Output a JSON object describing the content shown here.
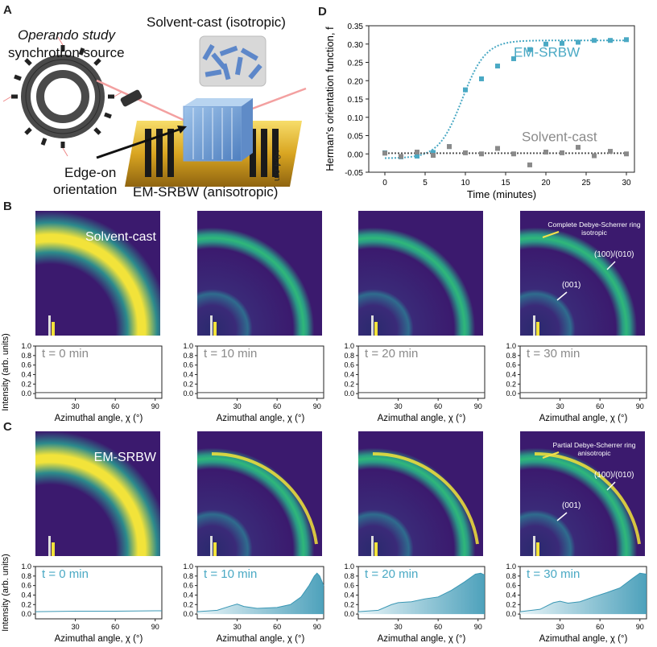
{
  "panels": {
    "a": "A",
    "b": "B",
    "c": "C",
    "d": "D"
  },
  "schematic": {
    "operando_line1": "Operando study",
    "operando_line2": "synchrotron source",
    "solvent_cast_label": "Solvent-cast (isotropic)",
    "edge_on_line1": "Edge-on",
    "edge_on_line2": "orientation",
    "em_srbw_label": "EM-SRBW (anisotropic)",
    "scale_label": "≈0.4 cm"
  },
  "colors": {
    "em": "#4aa9c4",
    "solvent": "#8a8a8a",
    "detector_bg": "#3b1a6e",
    "ring_yellow": "#f2e33a",
    "ring_green": "#2fb87a",
    "gold": "#d9a521"
  },
  "chart_data": [
    {
      "type": "scatter",
      "panel": "D",
      "xlabel": "Time (minutes)",
      "ylabel": "Herman's orientation function, f",
      "xlim": [
        -2,
        31
      ],
      "ylim": [
        -0.05,
        0.35
      ],
      "xticks": [
        "0",
        "5",
        "10",
        "15",
        "20",
        "25",
        "30"
      ],
      "yticks": [
        "-0.05",
        "0.00",
        "0.05",
        "0.10",
        "0.15",
        "0.20",
        "0.25",
        "0.30",
        "0.35"
      ],
      "series": [
        {
          "name": "EM-SRBW",
          "x": [
            0,
            2,
            4,
            6,
            8,
            10,
            12,
            14,
            16,
            18,
            20,
            22,
            24,
            26,
            28,
            30
          ],
          "y": [
            0.003,
            -0.008,
            -0.006,
            0.004,
            0.02,
            0.175,
            0.205,
            0.24,
            0.26,
            0.285,
            0.3,
            0.302,
            0.305,
            0.31,
            0.31,
            0.312
          ]
        },
        {
          "name": "Solvent-cast",
          "x": [
            0,
            2,
            4,
            6,
            8,
            10,
            12,
            14,
            16,
            18,
            20,
            22,
            24,
            26,
            28,
            30
          ],
          "y": [
            0.002,
            -0.007,
            0.005,
            -0.004,
            0.02,
            0.003,
            0.0,
            0.015,
            0.0,
            -0.03,
            0.005,
            0.003,
            0.018,
            -0.005,
            0.007,
            0.0
          ]
        }
      ]
    },
    {
      "type": "line",
      "panel": "B",
      "xlabel": "Azimuthal angle, χ (°)",
      "ylabel": "Intensity (arb. units)",
      "xlim": [
        0,
        95
      ],
      "ylim": [
        -0.1,
        1.0
      ],
      "xticks": [
        "30",
        "60",
        "90"
      ],
      "yticks": [
        "0.0",
        "0.2",
        "0.4",
        "0.6",
        "0.8",
        "1.0"
      ],
      "subplots": [
        {
          "label": "t = 0 min",
          "x": [
            0,
            30,
            60,
            95
          ],
          "y": [
            0.02,
            0.02,
            0.02,
            0.02
          ]
        },
        {
          "label": "t = 10 min",
          "x": [
            0,
            30,
            60,
            95
          ],
          "y": [
            0.02,
            0.02,
            0.02,
            0.02
          ]
        },
        {
          "label": "t = 20 min",
          "x": [
            0,
            30,
            60,
            95
          ],
          "y": [
            0.02,
            0.02,
            0.02,
            0.02
          ]
        },
        {
          "label": "t = 30 min",
          "x": [
            0,
            30,
            60,
            95
          ],
          "y": [
            0.02,
            0.02,
            0.02,
            0.02
          ]
        }
      ]
    },
    {
      "type": "area",
      "panel": "C",
      "xlabel": "Azimuthal angle, χ (°)",
      "ylabel": "Intensity (arb. units)",
      "xlim": [
        0,
        95
      ],
      "ylim": [
        -0.1,
        1.0
      ],
      "xticks": [
        "30",
        "60",
        "90"
      ],
      "yticks": [
        "0.0",
        "0.2",
        "0.4",
        "0.6",
        "0.8",
        "1.0"
      ],
      "subplots": [
        {
          "label": "t = 0 min",
          "x": [
            0,
            30,
            60,
            90,
            95
          ],
          "y": [
            0.05,
            0.06,
            0.06,
            0.07,
            0.07
          ]
        },
        {
          "label": "t = 10 min",
          "x": [
            0,
            15,
            25,
            30,
            35,
            45,
            60,
            70,
            78,
            84,
            88,
            90,
            92,
            95
          ],
          "y": [
            0.05,
            0.08,
            0.17,
            0.21,
            0.16,
            0.12,
            0.14,
            0.2,
            0.36,
            0.6,
            0.8,
            0.86,
            0.8,
            0.6
          ]
        },
        {
          "label": "t = 20 min",
          "x": [
            0,
            15,
            25,
            30,
            40,
            50,
            60,
            70,
            80,
            88,
            92,
            95
          ],
          "y": [
            0.05,
            0.08,
            0.2,
            0.24,
            0.26,
            0.32,
            0.36,
            0.5,
            0.68,
            0.84,
            0.86,
            0.82
          ]
        },
        {
          "label": "t = 30 min",
          "x": [
            0,
            15,
            25,
            30,
            36,
            45,
            55,
            65,
            75,
            85,
            90,
            95
          ],
          "y": [
            0.05,
            0.1,
            0.24,
            0.27,
            0.23,
            0.26,
            0.36,
            0.45,
            0.55,
            0.76,
            0.86,
            0.84
          ]
        }
      ]
    }
  ],
  "detectors": {
    "b": [
      {
        "label": "Solvent-cast",
        "annot": []
      },
      {
        "label": "",
        "annot": []
      },
      {
        "label": "",
        "annot": []
      },
      {
        "label": "",
        "annot": [
          "Complete Debye-Scherrer ring",
          "isotropic",
          "(100)/(010)",
          "(001)"
        ]
      }
    ],
    "c": [
      {
        "label": "EM-SRBW",
        "annot": []
      },
      {
        "label": "",
        "annot": []
      },
      {
        "label": "",
        "annot": []
      },
      {
        "label": "",
        "annot": [
          "Partial Debye-Scherrer ring",
          "anisotropic",
          "(100)/(010)",
          "(001)"
        ]
      }
    ]
  }
}
